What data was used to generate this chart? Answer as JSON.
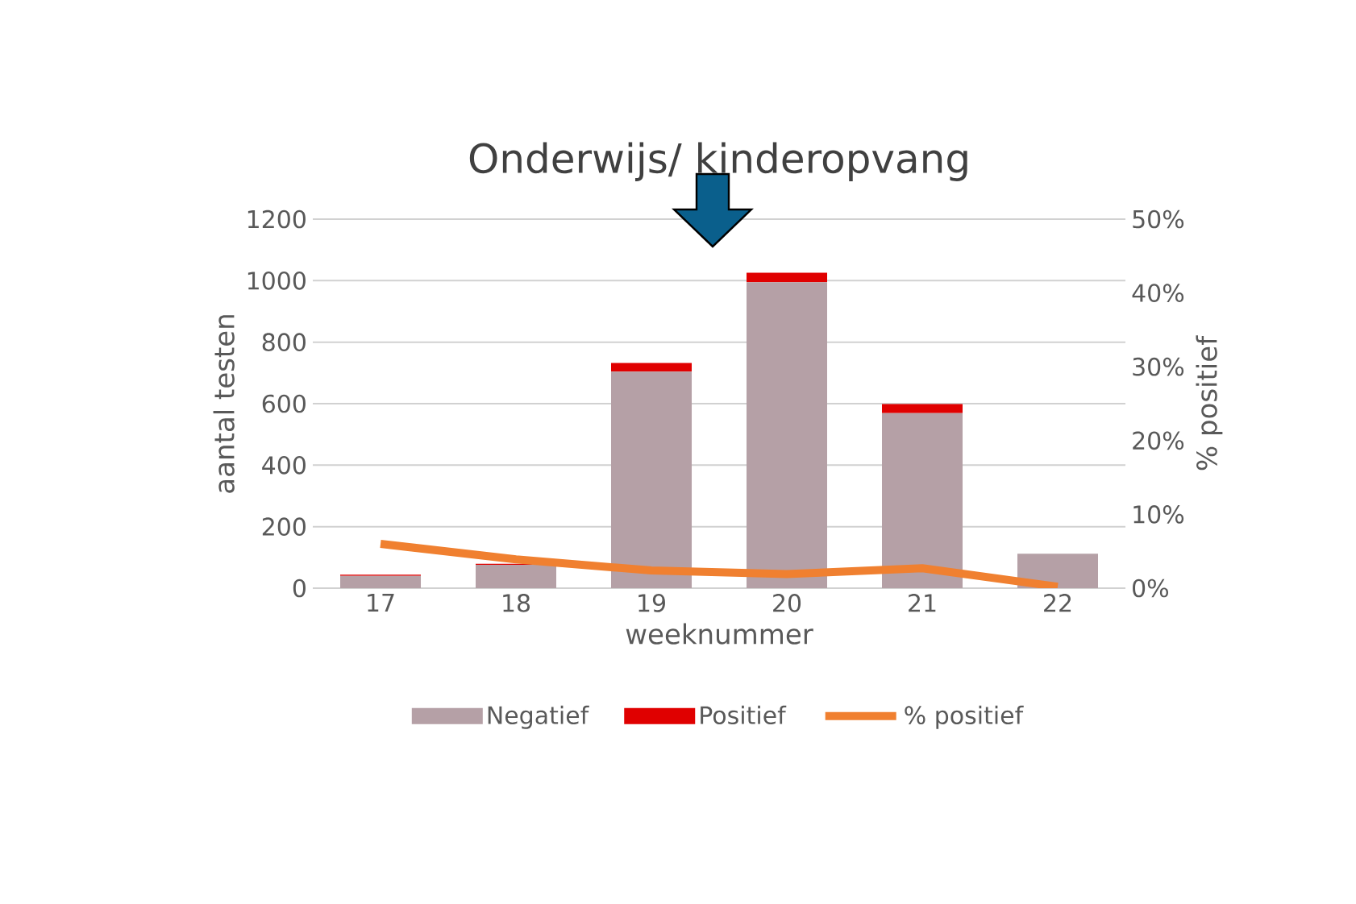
{
  "chart_data": {
    "type": "bar",
    "title": "Onderwijs/ kinderopvang",
    "xlabel": "weeknummer",
    "ylabel": "aantal testen",
    "y2label": "% positief",
    "categories": [
      "17",
      "18",
      "19",
      "20",
      "21",
      "22"
    ],
    "stacked": true,
    "series": [
      {
        "name": "Negatief",
        "color": "#b5a0a6",
        "values": [
          40,
          76,
          704,
          995,
          569,
          112
        ]
      },
      {
        "name": "Positief",
        "color": "#e00000",
        "values": [
          4,
          3,
          28,
          31,
          30,
          0
        ]
      },
      {
        "name": "% positief",
        "type": "line",
        "axis": "y2",
        "color": "#f08030",
        "values": [
          6.0,
          3.9,
          2.4,
          1.9,
          2.7,
          0.2
        ]
      }
    ],
    "ylim": [
      0,
      1200
    ],
    "yticks": [
      0,
      200,
      400,
      600,
      800,
      1000,
      1200
    ],
    "y2lim": [
      0,
      50
    ],
    "y2ticks": [
      {
        "value": 0,
        "label": "0%"
      },
      {
        "value": 10,
        "label": "10%"
      },
      {
        "value": 20,
        "label": "20%"
      },
      {
        "value": 30,
        "label": "30%"
      },
      {
        "value": 40,
        "label": "40%"
      },
      {
        "value": 50,
        "label": "50%"
      }
    ],
    "grid": "y",
    "legend": "bottom",
    "marker": "none"
  }
}
